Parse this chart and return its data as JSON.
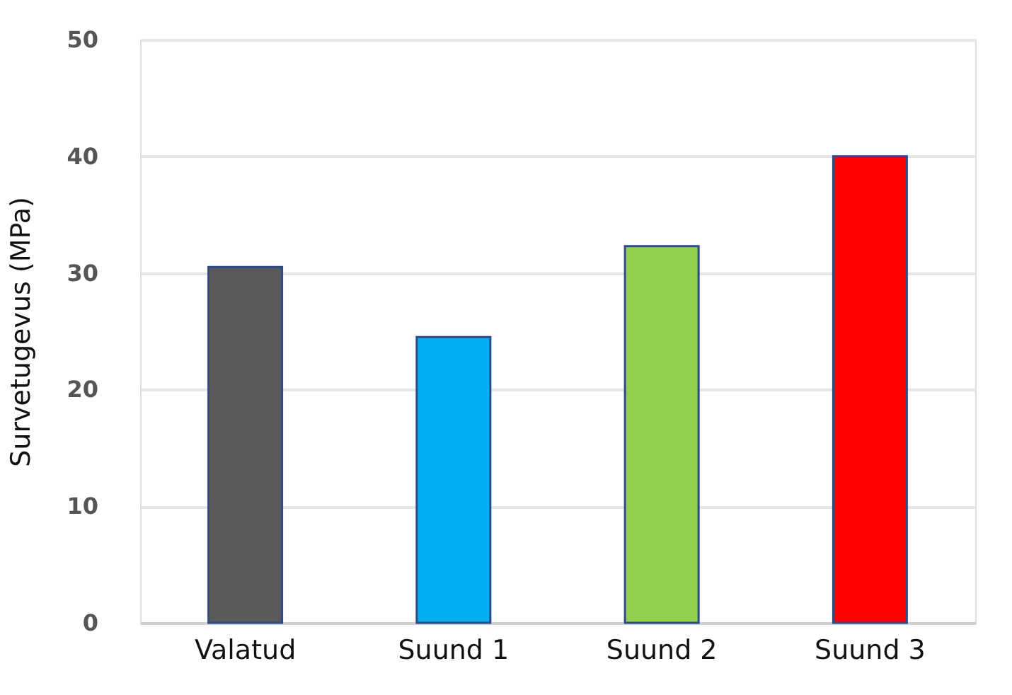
{
  "chart_data": {
    "type": "bar",
    "ylabel": "Survetugevus (MPa)",
    "categories": [
      "Valatud",
      "Suund 1",
      "Suund 2",
      "Suund 3"
    ],
    "values": [
      30.5,
      24.5,
      32.3,
      40
    ],
    "colors": [
      "#5a5a5a",
      "#00b0f0",
      "#92d050",
      "#ff0000"
    ],
    "ylim": [
      0,
      50
    ],
    "yticks": [
      0,
      10,
      20,
      30,
      40,
      50
    ],
    "grid": "y"
  }
}
